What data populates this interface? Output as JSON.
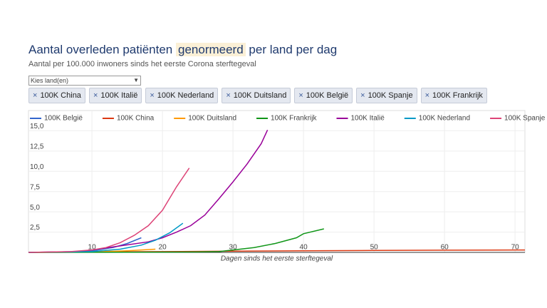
{
  "header": {
    "title_parts": [
      "Aantal overleden patiënten",
      "genormeerd",
      "per land per dag"
    ],
    "subtitle": "Aantal per 100.000 inwoners sinds het eerste Corona sterftegeval"
  },
  "filter": {
    "placeholder": "Kies land(en)",
    "chips": [
      "100K China",
      "100K Italië",
      "100K Nederland",
      "100K Duitsland",
      "100K België",
      "100K Spanje",
      "100K Frankrijk"
    ]
  },
  "chart_data": {
    "type": "line",
    "x_label": "Dagen sinds het eerste sterftegeval",
    "xlim": [
      1,
      71.4
    ],
    "xticks": [
      10,
      20,
      30,
      40,
      50,
      60,
      70
    ],
    "ylim": [
      0,
      17.5
    ],
    "yticks": [
      {
        "value": 2.5,
        "label": "2,5"
      },
      {
        "value": 5,
        "label": "5,0"
      },
      {
        "value": 7.5,
        "label": "7,5"
      },
      {
        "value": 10,
        "label": "10,0"
      },
      {
        "value": 12.5,
        "label": "12,5"
      },
      {
        "value": 15,
        "label": "15,0"
      }
    ],
    "grid": true,
    "series": [
      {
        "name": "100K België",
        "color": "#3366cc",
        "x": [
          1,
          5,
          8,
          10,
          13,
          15,
          17
        ],
        "values": [
          0,
          0.05,
          0.1,
          0.2,
          0.6,
          1.1,
          1.8
        ]
      },
      {
        "name": "100K China",
        "color": "#dc3912",
        "x": [
          1,
          10,
          20,
          30,
          40,
          50,
          60,
          71.4
        ],
        "values": [
          0,
          0.05,
          0.1,
          0.15,
          0.2,
          0.24,
          0.27,
          0.3
        ]
      },
      {
        "name": "100K Duitsland",
        "color": "#ff9900",
        "x": [
          1,
          5,
          10,
          15,
          19
        ],
        "values": [
          0,
          0,
          0.05,
          0.2,
          0.4
        ]
      },
      {
        "name": "100K Frankrijk",
        "color": "#109618",
        "x": [
          1,
          15,
          25,
          28,
          30,
          33,
          36,
          39,
          40,
          42.9
        ],
        "values": [
          0,
          0.02,
          0.05,
          0.1,
          0.3,
          0.6,
          1.1,
          1.8,
          2.3,
          2.9
        ]
      },
      {
        "name": "100K Italië",
        "color": "#990099",
        "x": [
          1,
          8,
          10,
          14,
          18,
          20,
          22,
          24,
          26,
          28,
          30,
          32,
          34,
          34.9
        ],
        "values": [
          0,
          0.1,
          0.3,
          0.8,
          1.3,
          1.8,
          2.5,
          3.3,
          4.6,
          6.6,
          8.7,
          10.9,
          13.4,
          15.1
        ]
      },
      {
        "name": "100K Nederland",
        "color": "#0099c6",
        "x": [
          1,
          7,
          10,
          14,
          17,
          19,
          21,
          22.9
        ],
        "values": [
          0,
          0.05,
          0.1,
          0.4,
          0.9,
          1.5,
          2.4,
          3.6
        ]
      },
      {
        "name": "100K Spanje",
        "color": "#dd4477",
        "x": [
          1,
          7,
          10,
          12,
          14,
          16,
          18,
          20,
          22,
          23.8
        ],
        "values": [
          0,
          0.1,
          0.3,
          0.6,
          1.2,
          2.1,
          3.3,
          5.2,
          8.1,
          10.4
        ]
      }
    ]
  }
}
